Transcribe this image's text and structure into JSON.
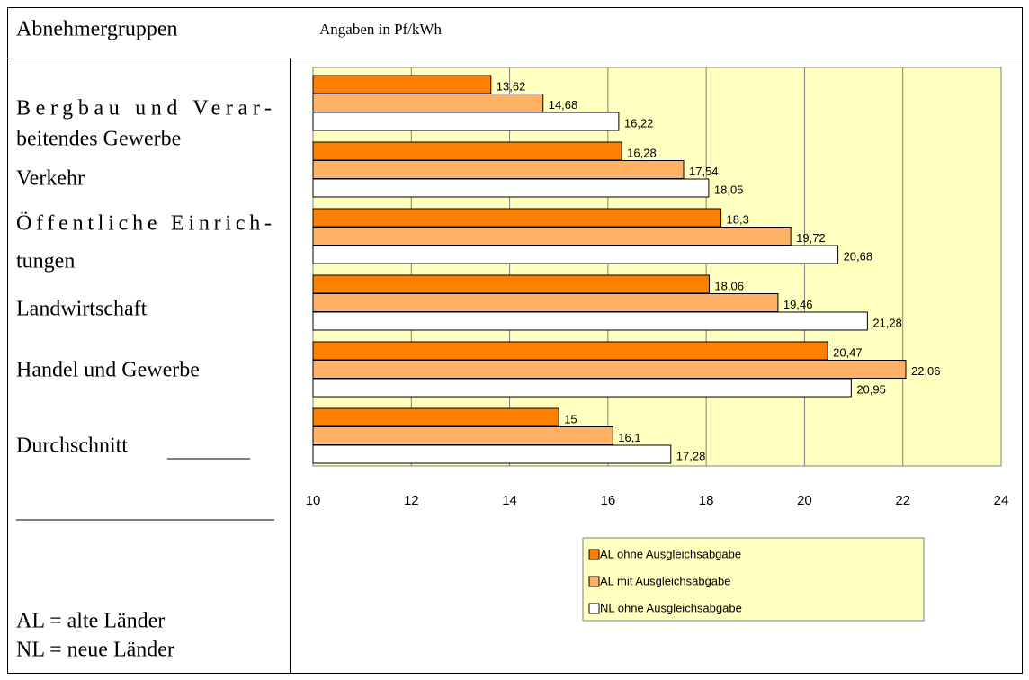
{
  "header": {
    "title": "Abnehmergruppen",
    "unit": "Angaben in Pf/kWh"
  },
  "chart_data": {
    "type": "bar",
    "orientation": "horizontal",
    "categories": [
      [
        "Bergbau und Verar-",
        "beitendes Gewerbe"
      ],
      [
        "Verkehr"
      ],
      [
        "Öffentliche Einrich-",
        "tungen"
      ],
      [
        "Landwirtschaft"
      ],
      [
        "Handel und Gewerbe"
      ],
      [
        "Durchschnitt"
      ]
    ],
    "series": [
      {
        "name": "AL ohne Ausgleichsabgabe",
        "color": "#ff8000",
        "values": [
          13.62,
          16.28,
          18.3,
          18.06,
          20.47,
          15
        ],
        "value_labels": [
          "13,62",
          "16,28",
          "18,3",
          "18,06",
          "20,47",
          "15"
        ]
      },
      {
        "name": "AL mit Ausgleichsabgabe",
        "color": "#ffb266",
        "values": [
          14.68,
          17.54,
          19.72,
          19.46,
          22.06,
          16.1
        ],
        "value_labels": [
          "14,68",
          "17,54",
          "19,72",
          "19,46",
          "22,06",
          "16,1"
        ]
      },
      {
        "name": "NL ohne Ausgleichsabgabe",
        "color": "#ffffff",
        "values": [
          16.22,
          18.05,
          20.68,
          21.28,
          20.95,
          17.28
        ],
        "value_labels": [
          "16,22",
          "18,05",
          "20,68",
          "21,28",
          "20,95",
          "17,28"
        ]
      }
    ],
    "xlim": [
      10,
      24
    ],
    "xticks": [
      10,
      12,
      14,
      16,
      18,
      20,
      22,
      24
    ],
    "grid": true,
    "background": "#ffffc0"
  },
  "notes": [
    "AL = alte Länder",
    "NL = neue Länder"
  ]
}
